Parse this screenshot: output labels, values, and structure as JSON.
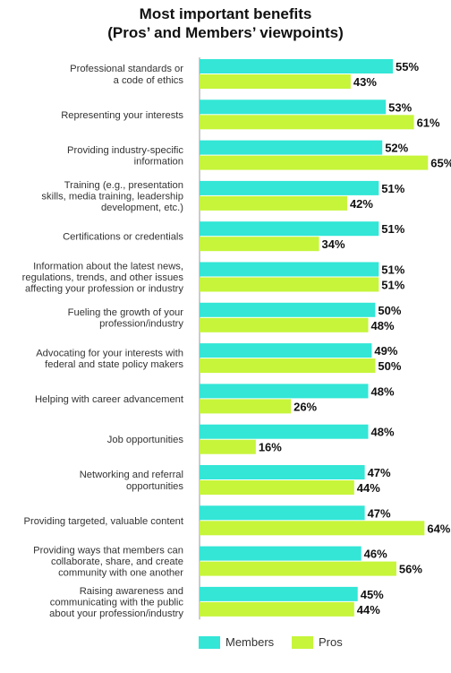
{
  "chart_data": {
    "type": "bar",
    "orientation": "horizontal",
    "title_line1": "Most important benefits",
    "title_line2": "(Pros’ and Members’ viewpoints)",
    "categories": [
      [
        "Professional standards or",
        "a code of ethics"
      ],
      [
        "Representing your interests"
      ],
      [
        "Providing industry-specific",
        "information"
      ],
      [
        "Training (e.g., presentation",
        "skills, media training, leadership",
        "development, etc.)"
      ],
      [
        "Certifications or credentials"
      ],
      [
        "Information about the latest news,",
        "regulations, trends, and other issues",
        "affecting your profession or industry"
      ],
      [
        "Fueling the growth of your",
        "profession/industry"
      ],
      [
        "Advocating for your interests with",
        "federal and state policy makers"
      ],
      [
        "Helping with career advancement"
      ],
      [
        "Job opportunities"
      ],
      [
        "Networking and referral",
        "opportunities"
      ],
      [
        "Providing targeted, valuable content"
      ],
      [
        "Providing ways that members can",
        "collaborate, share, and create",
        "community with one another"
      ],
      [
        "Raising awareness and",
        "communicating with the public",
        "about your profession/industry"
      ]
    ],
    "series": [
      {
        "name": "Members",
        "color": "#33e6d6",
        "values": [
          55,
          53,
          52,
          51,
          51,
          51,
          50,
          49,
          48,
          48,
          47,
          47,
          46,
          45
        ]
      },
      {
        "name": "Pros",
        "color": "#c6f53a",
        "values": [
          43,
          61,
          65,
          42,
          34,
          51,
          48,
          50,
          26,
          16,
          44,
          64,
          56,
          44
        ]
      }
    ],
    "value_suffix": "%",
    "xlim": [
      0,
      70
    ],
    "grid": false,
    "legend_position": "bottom"
  }
}
